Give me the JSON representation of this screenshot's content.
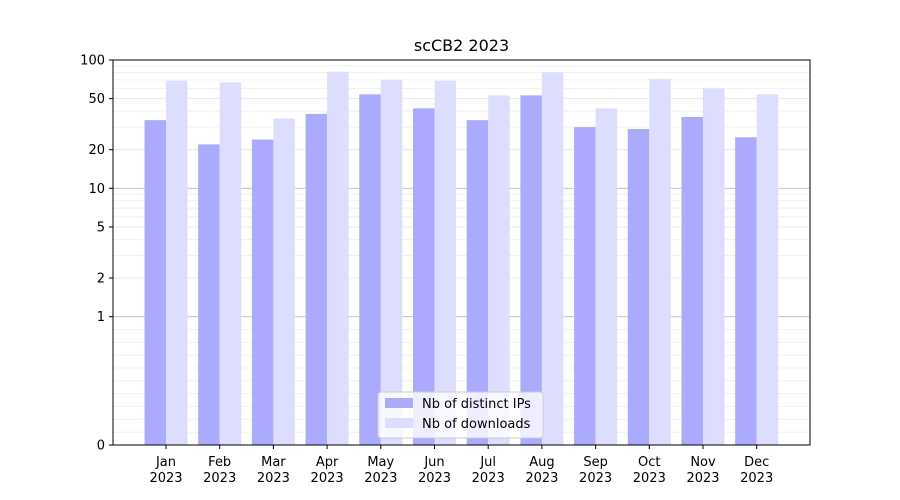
{
  "chart_data": {
    "type": "bar",
    "title": "scCB2 2023",
    "xlabel": "",
    "ylabel": "",
    "yscale": "symlog",
    "ylim": [
      0,
      100
    ],
    "y_ticks": [
      0,
      1,
      2,
      5,
      10,
      20,
      50,
      100
    ],
    "grid": true,
    "legend_position": "bottom-center",
    "categories": [
      "Jan\n2023",
      "Feb\n2023",
      "Mar\n2023",
      "Apr\n2023",
      "May\n2023",
      "Jun\n2023",
      "Jul\n2023",
      "Aug\n2023",
      "Sep\n2023",
      "Oct\n2023",
      "Nov\n2023",
      "Dec\n2023"
    ],
    "series": [
      {
        "name": "Nb of distinct IPs",
        "color": "#aaaaff",
        "values": [
          34,
          22,
          24,
          38,
          54,
          42,
          34,
          53,
          30,
          29,
          36,
          25
        ]
      },
      {
        "name": "Nb of downloads",
        "color": "#ddddff",
        "values": [
          69,
          67,
          35,
          81,
          70,
          69,
          53,
          80,
          42,
          71,
          60,
          54
        ]
      }
    ]
  }
}
